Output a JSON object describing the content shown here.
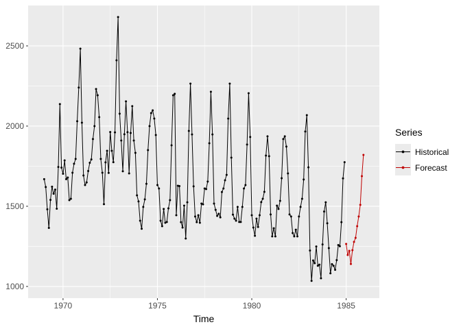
{
  "figure": {
    "background": "#FFFFFF"
  },
  "theme": {
    "panel_background": "#EBEBEB",
    "grid_major_color": "#FFFFFF",
    "grid_minor_color": "#FFFFFF",
    "tick_mark_color": "#333333",
    "tick_label_color": "#4D4D4D",
    "axis_title_color": "#000000",
    "legend_key_background": "#EBEBEB",
    "historical_color": "#000000",
    "forecast_color": "#C00000"
  },
  "legend": {
    "title": "Series",
    "items": [
      {
        "label": "Historical",
        "color": "#000000"
      },
      {
        "label": "Forecast",
        "color": "#C00000"
      }
    ]
  },
  "chart_data": {
    "type": "line",
    "title": "",
    "xlabel": "Time",
    "ylabel": "",
    "grid": true,
    "legend_position": "right",
    "xlim": [
      1968.15,
      1986.76
    ],
    "ylim": [
      927,
      2752
    ],
    "x_ticks": {
      "values": [
        1970,
        1975,
        1980,
        1985
      ],
      "labels": [
        "1970",
        "1975",
        "1980",
        "1985"
      ],
      "minor": [
        1972.5,
        1977.5,
        1982.5
      ]
    },
    "y_ticks": {
      "values": [
        1000,
        1500,
        2000,
        2500
      ],
      "labels": [
        "1000",
        "1500",
        "2000",
        "2500"
      ],
      "minor": [
        1250,
        1750,
        2250
      ]
    },
    "frequency_per_year": 12,
    "marker_radius": 1.5,
    "series": [
      {
        "name": "Historical",
        "color": "#000000",
        "start": 1969.0,
        "values": [
          1669,
          1620,
          1481,
          1365,
          1540,
          1622,
          1578,
          1604,
          1485,
          1745,
          2137,
          1741,
          1703,
          1786,
          1669,
          1679,
          1538,
          1547,
          1709,
          1765,
          1795,
          2030,
          2240,
          2483,
          2021,
          1692,
          1632,
          1649,
          1720,
          1771,
          1792,
          1919,
          2000,
          2231,
          2192,
          2056,
          1795,
          1709,
          1513,
          1774,
          1846,
          1708,
          1963,
          1846,
          1775,
          1961,
          2410,
          2680,
          2077,
          1910,
          1718,
          1949,
          2154,
          1962,
          1705,
          1957,
          2124,
          1910,
          1833,
          1568,
          1530,
          1410,
          1360,
          1496,
          1543,
          1640,
          1850,
          2000,
          2081,
          2098,
          2047,
          1944,
          1632,
          1611,
          1410,
          1376,
          1483,
          1397,
          1402,
          1487,
          1538,
          1880,
          2192,
          2201,
          1444,
          1628,
          1626,
          1401,
          1367,
          1504,
          1299,
          1525,
          1970,
          2265,
          1948,
          1624,
          1436,
          1401,
          1444,
          1397,
          1517,
          1512,
          1611,
          1607,
          1654,
          1893,
          2214,
          1948,
          1517,
          1478,
          1440,
          1453,
          1431,
          1589,
          1611,
          1662,
          1696,
          2047,
          2265,
          1803,
          1448,
          1423,
          1410,
          1496,
          1402,
          1402,
          1496,
          1611,
          1632,
          1885,
          2205,
          1932,
          1444,
          1367,
          1316,
          1423,
          1371,
          1444,
          1526,
          1547,
          1590,
          1816,
          1936,
          1812,
          1449,
          1312,
          1363,
          1312,
          1504,
          1483,
          1534,
          1675,
          1919,
          1936,
          1872,
          1705,
          1449,
          1436,
          1333,
          1312,
          1354,
          1312,
          1436,
          1496,
          1547,
          1667,
          1966,
          2068,
          1743,
          1224,
          1035,
          1162,
          1145,
          1249,
          1129,
          1136,
          1051,
          1262,
          1467,
          1525,
          1394,
          1239,
          1082,
          1139,
          1129,
          1104,
          1164,
          1258,
          1251,
          1401,
          1674,
          1775
        ]
      },
      {
        "name": "Forecast",
        "color": "#C00000",
        "start": 1985.0,
        "values": [
          1265,
          1196,
          1222,
          1140,
          1226,
          1278,
          1303,
          1376,
          1436,
          1509,
          1688,
          1820
        ]
      }
    ]
  }
}
